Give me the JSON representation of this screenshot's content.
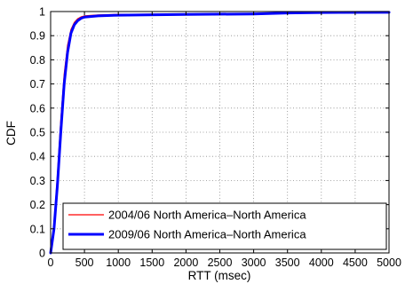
{
  "chart_data": {
    "type": "line",
    "title": "",
    "xlabel": "RTT (msec)",
    "ylabel": "CDF",
    "xlim": [
      0,
      5000
    ],
    "ylim": [
      0,
      1
    ],
    "x_ticks": [
      0,
      500,
      1000,
      1500,
      2000,
      2500,
      3000,
      3500,
      4000,
      4500,
      5000
    ],
    "y_ticks": [
      0,
      0.1,
      0.2,
      0.3,
      0.4,
      0.5,
      0.6,
      0.7,
      0.8,
      0.9,
      1
    ],
    "grid": true,
    "legend_position": "bottom-right",
    "series": [
      {
        "name": "2004/06 North America–North America",
        "color": "#ff0000",
        "line_width": "thin",
        "points": [
          [
            0,
            0
          ],
          [
            50,
            0.12
          ],
          [
            100,
            0.32
          ],
          [
            150,
            0.55
          ],
          [
            200,
            0.74
          ],
          [
            250,
            0.86
          ],
          [
            300,
            0.925
          ],
          [
            350,
            0.955
          ],
          [
            400,
            0.97
          ],
          [
            450,
            0.978
          ],
          [
            500,
            0.982
          ],
          [
            700,
            0.986
          ],
          [
            1000,
            0.988
          ],
          [
            2000,
            0.99
          ],
          [
            3000,
            0.992
          ],
          [
            3500,
            0.996
          ],
          [
            4000,
            0.997
          ],
          [
            5000,
            0.998
          ]
        ]
      },
      {
        "name": "2009/06 North America–North America",
        "color": "#0000ff",
        "line_width": "thick",
        "points": [
          [
            0,
            0
          ],
          [
            50,
            0.1
          ],
          [
            100,
            0.28
          ],
          [
            150,
            0.5
          ],
          [
            200,
            0.7
          ],
          [
            250,
            0.83
          ],
          [
            300,
            0.91
          ],
          [
            350,
            0.945
          ],
          [
            400,
            0.962
          ],
          [
            450,
            0.972
          ],
          [
            500,
            0.977
          ],
          [
            700,
            0.982
          ],
          [
            1000,
            0.985
          ],
          [
            2000,
            0.988
          ],
          [
            3000,
            0.99
          ],
          [
            3500,
            0.994
          ],
          [
            4000,
            0.996
          ],
          [
            5000,
            0.997
          ]
        ]
      }
    ]
  }
}
